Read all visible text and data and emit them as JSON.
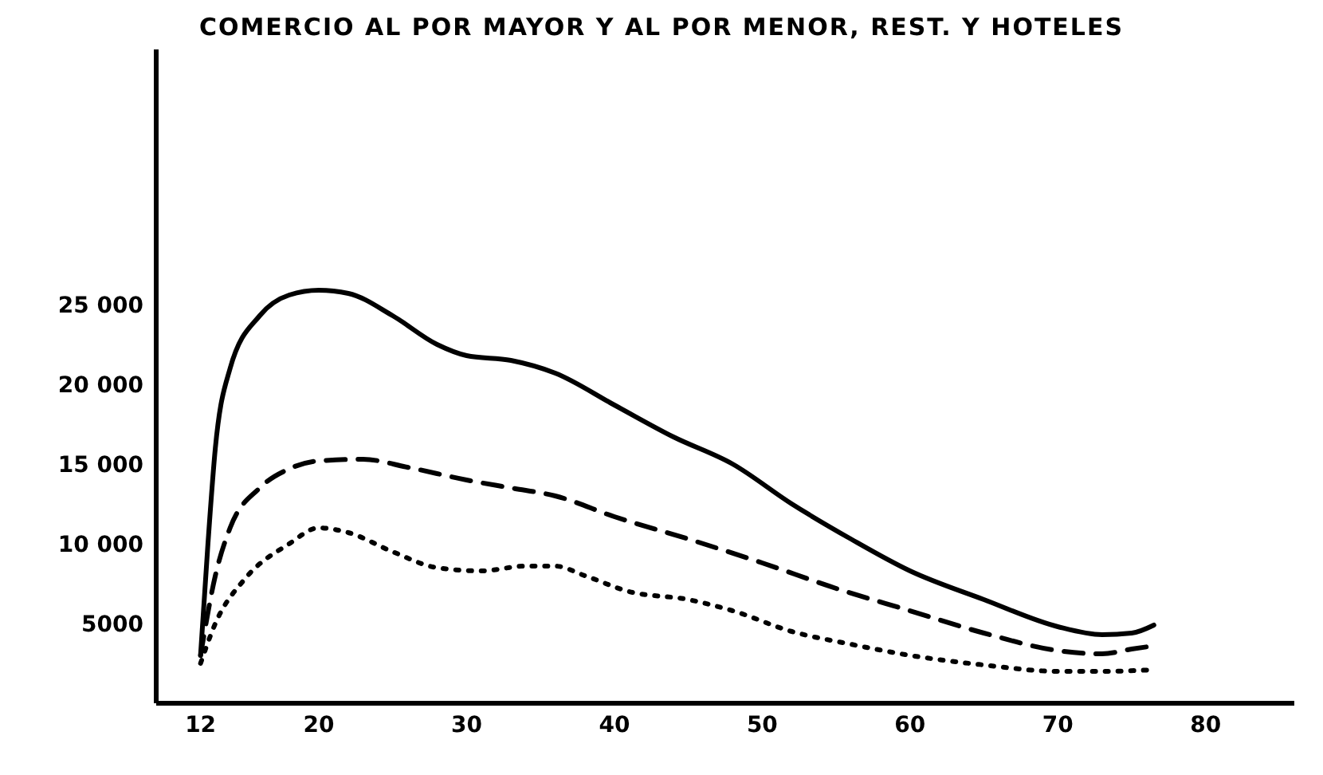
{
  "chart_data": {
    "type": "line",
    "title": "COMERCIO AL POR MAYOR Y AL POR MENOR, REST. Y HOTELES",
    "xlim": [
      9,
      86
    ],
    "xticks": [
      12,
      20,
      30,
      40,
      50,
      60,
      70,
      80
    ],
    "ylim": [
      0,
      41000
    ],
    "yticks": [
      {
        "value": 5000,
        "label": "5000"
      },
      {
        "value": 10000,
        "label": "10 000"
      },
      {
        "value": 15000,
        "label": "15 000"
      },
      {
        "value": 20000,
        "label": "20 000"
      },
      {
        "value": 25000,
        "label": "25 000"
      }
    ],
    "grid": false,
    "legend": false,
    "marker": "none",
    "series": [
      {
        "color": "#000000",
        "line_style": "solid",
        "x": [
          12,
          12.5,
          13,
          14,
          16,
          18,
          20,
          22,
          25,
          28,
          30,
          33,
          36,
          40,
          44,
          48,
          52,
          56,
          60,
          65,
          70,
          73,
          75,
          76.5
        ],
        "values": [
          3000,
          10000,
          16000,
          21000,
          24300,
          25600,
          25900,
          25700,
          24300,
          22500,
          21800,
          21500,
          20700,
          18700,
          16700,
          15000,
          12500,
          10300,
          8300,
          6500,
          4800,
          4300,
          4400,
          4900
        ]
      },
      {
        "color": "#000000",
        "line_style": "dashed",
        "x": [
          12,
          13,
          14,
          16,
          18,
          20,
          23,
          26,
          30,
          33,
          36,
          40,
          45,
          50,
          55,
          60,
          65,
          70,
          73,
          75,
          76.5
        ],
        "values": [
          3000,
          8000,
          11000,
          13500,
          14700,
          15200,
          15300,
          14800,
          14000,
          13500,
          13000,
          11700,
          10300,
          8800,
          7200,
          5800,
          4400,
          3300,
          3100,
          3400,
          3600
        ]
      },
      {
        "color": "#000000",
        "line_style": "dotted",
        "x": [
          12,
          13,
          15,
          18,
          20,
          22,
          25,
          28,
          31,
          34,
          36,
          38,
          41,
          45,
          48,
          52,
          56,
          60,
          65,
          70,
          73,
          76.5
        ],
        "values": [
          2500,
          5000,
          7800,
          10000,
          11000,
          10700,
          9500,
          8500,
          8300,
          8600,
          8600,
          8000,
          7000,
          6500,
          5800,
          4500,
          3700,
          3000,
          2400,
          2000,
          2000,
          2100
        ]
      }
    ]
  }
}
